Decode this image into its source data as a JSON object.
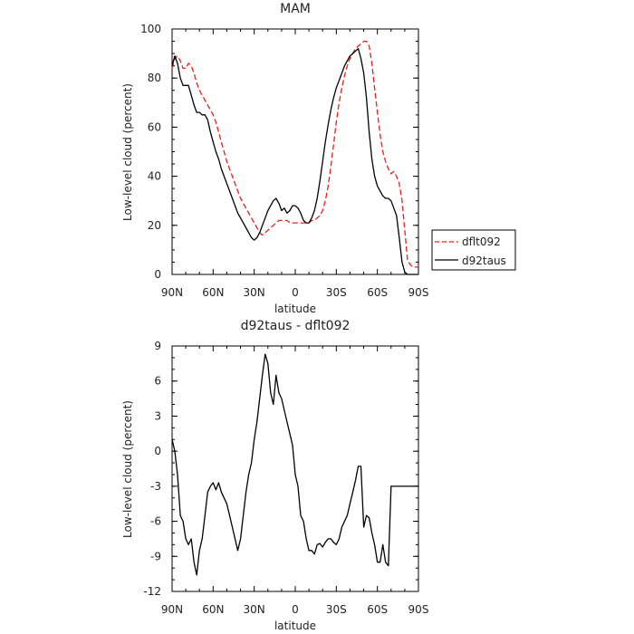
{
  "chart_data": [
    {
      "type": "line",
      "title": "MAM",
      "xlabel": "latitude",
      "ylabel": "Low-level cloud (percent)",
      "xlim": [
        90,
        -90
      ],
      "ylim": [
        0,
        100
      ],
      "xticks": [
        90,
        60,
        30,
        0,
        -30,
        -60,
        -90
      ],
      "xtick_labels": [
        "90N",
        "60N",
        "30N",
        "0",
        "30S",
        "60S",
        "90S"
      ],
      "yticks": [
        0,
        20,
        40,
        60,
        80,
        100
      ],
      "ytick_labels": [
        "0",
        "20",
        "40",
        "60",
        "80",
        "100"
      ],
      "legend": {
        "placement": "right",
        "entries": [
          "dflt092",
          "d92taus"
        ]
      },
      "series": [
        {
          "name": "dflt092",
          "color": "#e8201c",
          "dash": "dashed",
          "x": [
            90,
            88,
            86,
            84,
            82,
            80,
            78,
            76,
            74,
            72,
            70,
            68,
            66,
            64,
            62,
            60,
            58,
            56,
            54,
            52,
            50,
            48,
            46,
            44,
            42,
            40,
            38,
            36,
            34,
            32,
            30,
            28,
            26,
            24,
            22,
            20,
            18,
            16,
            14,
            12,
            10,
            8,
            6,
            4,
            2,
            0,
            -2,
            -4,
            -6,
            -8,
            -10,
            -12,
            -14,
            -16,
            -18,
            -20,
            -22,
            -24,
            -26,
            -28,
            -30,
            -32,
            -34,
            -36,
            -38,
            -40,
            -42,
            -44,
            -46,
            -48,
            -50,
            -52,
            -54,
            -56,
            -58,
            -60,
            -62,
            -64,
            -66,
            -68,
            -70,
            -72,
            -74,
            -76,
            -78,
            -80,
            -82,
            -84,
            -86,
            -88,
            -90
          ],
          "y": [
            84,
            88,
            89,
            87,
            84,
            84,
            86,
            85,
            82,
            78,
            75,
            73,
            71,
            69,
            67,
            65,
            62,
            58,
            54,
            50,
            46,
            43,
            40,
            37,
            34,
            31,
            29,
            27,
            25,
            23,
            21,
            19,
            17,
            16,
            17,
            18,
            19,
            20,
            21,
            22,
            22,
            22,
            22,
            21,
            21,
            21,
            21,
            21,
            21,
            21,
            21,
            22,
            22,
            23,
            24,
            26,
            30,
            36,
            44,
            53,
            62,
            70,
            76,
            81,
            85,
            88,
            90,
            92,
            93,
            94,
            95,
            95,
            93,
            86,
            76,
            66,
            57,
            50,
            46,
            43,
            41,
            42,
            40,
            37,
            30,
            18,
            6,
            4,
            3,
            3,
            3
          ]
        },
        {
          "name": "d92taus",
          "color": "#000000",
          "dash": "solid",
          "x": [
            90,
            88,
            86,
            84,
            82,
            80,
            78,
            76,
            74,
            72,
            70,
            68,
            66,
            64,
            62,
            60,
            58,
            56,
            54,
            52,
            50,
            48,
            46,
            44,
            42,
            40,
            38,
            36,
            34,
            32,
            30,
            28,
            26,
            24,
            22,
            20,
            18,
            16,
            14,
            12,
            10,
            8,
            6,
            4,
            2,
            0,
            -2,
            -4,
            -6,
            -8,
            -10,
            -12,
            -14,
            -16,
            -18,
            -20,
            -22,
            -24,
            -26,
            -28,
            -30,
            -32,
            -34,
            -36,
            -38,
            -40,
            -42,
            -44,
            -46,
            -48,
            -50,
            -52,
            -54,
            -56,
            -58,
            -60,
            -62,
            -64,
            -66,
            -68,
            -70,
            -72,
            -74,
            -76,
            -78,
            -80,
            -82,
            -84,
            -86,
            -88,
            -90
          ],
          "y": [
            85,
            89,
            86,
            80,
            77,
            77,
            77,
            73,
            69,
            66,
            66,
            65,
            65,
            63,
            58,
            54,
            50,
            47,
            43,
            40,
            37,
            34,
            31,
            28,
            25,
            23,
            21,
            19,
            17,
            15,
            14,
            15,
            17,
            20,
            23,
            26,
            28,
            30,
            31,
            29,
            26,
            27,
            25,
            26,
            28,
            28,
            27,
            25,
            22,
            21,
            21,
            23,
            26,
            31,
            38,
            46,
            54,
            61,
            67,
            72,
            76,
            79,
            82,
            85,
            87,
            89,
            90,
            91,
            92,
            88,
            82,
            72,
            58,
            47,
            40,
            36,
            34,
            32,
            31,
            31,
            30,
            27,
            24,
            15,
            5,
            1,
            0,
            0,
            0,
            0,
            0
          ]
        }
      ]
    },
    {
      "type": "line",
      "title": "d92taus - dflt092",
      "xlabel": "latitude",
      "ylabel": "Low-level cloud (percent)",
      "xlim": [
        90,
        -90
      ],
      "ylim": [
        -12,
        9
      ],
      "xticks": [
        90,
        60,
        30,
        0,
        -30,
        -60,
        -90
      ],
      "xtick_labels": [
        "90N",
        "60N",
        "30N",
        "0",
        "30S",
        "60S",
        "90S"
      ],
      "yticks": [
        -12,
        -9,
        -6,
        -3,
        0,
        3,
        6,
        9
      ],
      "ytick_labels": [
        "-12",
        "-9",
        "-6",
        "-3",
        "0",
        "3",
        "6",
        "9"
      ],
      "series": [
        {
          "color": "#000000",
          "dash": "solid",
          "x": [
            90,
            88,
            86,
            84,
            82,
            80,
            78,
            76,
            74,
            72,
            70,
            68,
            66,
            64,
            62,
            60,
            58,
            56,
            54,
            52,
            50,
            48,
            46,
            44,
            42,
            40,
            38,
            36,
            34,
            32,
            30,
            28,
            26,
            24,
            22,
            20,
            18,
            16,
            14,
            12,
            10,
            8,
            6,
            4,
            2,
            0,
            -2,
            -4,
            -6,
            -8,
            -10,
            -12,
            -14,
            -16,
            -18,
            -20,
            -22,
            -24,
            -26,
            -28,
            -30,
            -32,
            -34,
            -36,
            -38,
            -40,
            -42,
            -44,
            -46,
            -48,
            -50,
            -52,
            -54,
            -56,
            -58,
            -60,
            -62,
            -64,
            -66,
            -68,
            -70,
            -72,
            -74,
            -76,
            -78,
            -80,
            -82,
            -84,
            -86,
            -88,
            -90
          ],
          "y": [
            1.0,
            0.0,
            -2.0,
            -5.5,
            -6.0,
            -7.5,
            -8.0,
            -7.5,
            -9.5,
            -10.6,
            -8.5,
            -7.5,
            -5.5,
            -3.5,
            -3.0,
            -2.7,
            -3.3,
            -2.7,
            -3.5,
            -4.0,
            -4.5,
            -5.5,
            -6.5,
            -7.5,
            -8.5,
            -7.5,
            -5.5,
            -3.5,
            -2.0,
            -1.0,
            1.0,
            2.5,
            4.5,
            6.5,
            8.3,
            7.5,
            5.0,
            4.0,
            6.5,
            5.0,
            4.5,
            3.5,
            2.5,
            1.5,
            0.5,
            -2.0,
            -3.0,
            -5.5,
            -6.0,
            -7.5,
            -8.5,
            -8.5,
            -8.8,
            -8.0,
            -7.9,
            -8.2,
            -7.8,
            -7.5,
            -7.5,
            -7.8,
            -8.0,
            -7.5,
            -6.5,
            -6.0,
            -5.5,
            -4.5,
            -3.5,
            -2.5,
            -1.3,
            -1.3,
            -6.5,
            -5.5,
            -5.7,
            -7.0,
            -8.0,
            -9.5,
            -9.5,
            -8.0,
            -9.5,
            -9.8,
            -3.0,
            -3.0,
            -3.0,
            -3.0,
            -3.0,
            -3.0,
            -3.0,
            -3.0,
            -3.0,
            -3.0,
            -3.0
          ]
        }
      ]
    }
  ]
}
